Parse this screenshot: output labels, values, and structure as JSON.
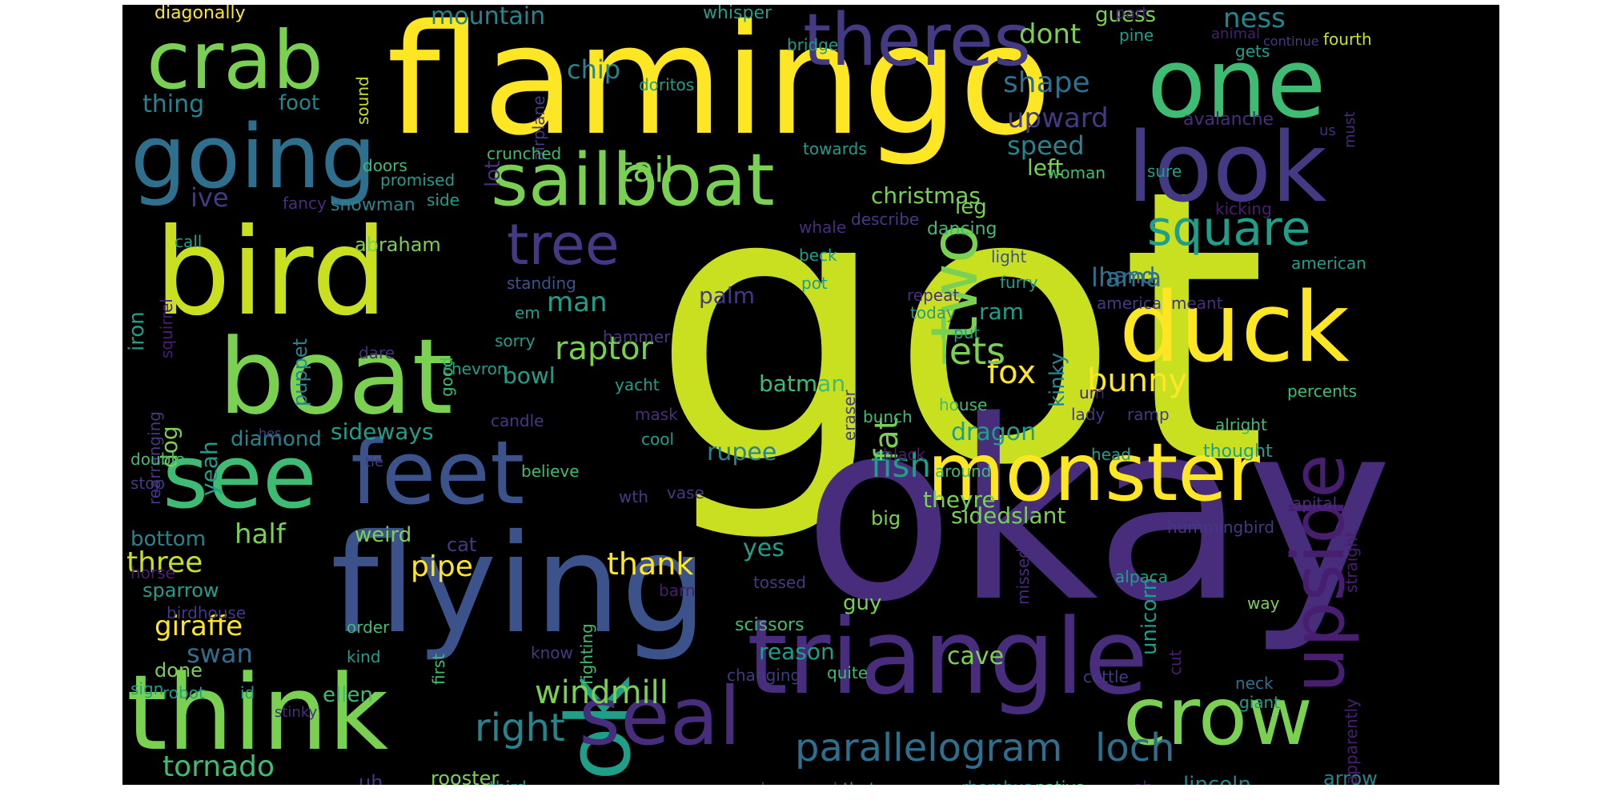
{
  "words": [
    "got",
    "okay",
    "flamingo",
    "flying",
    "bird",
    "triangle",
    "boat",
    "think",
    "see",
    "feet",
    "ok",
    "duck",
    "one",
    "look",
    "monster",
    "upside",
    "crab",
    "going",
    "sailboat",
    "seal",
    "crow",
    "two",
    "theres",
    "tree",
    "square",
    "parallelogram",
    "right",
    "loch",
    "tornado",
    "windmill",
    "fox",
    "man",
    "tail",
    "raptor",
    "bunny",
    "fish",
    "fat",
    "lets",
    "llama",
    "kinky",
    "giraffe",
    "three",
    "half",
    "swan",
    "pipe",
    "thank",
    "sideways",
    "dragon",
    "sidedslant",
    "diamond",
    "dog",
    "yeah",
    "bowl",
    "batman",
    "christmas",
    "cave",
    "mountain",
    "ness",
    "dont",
    "shape",
    "upward",
    "speed",
    "chip",
    "guess",
    "thing",
    "foot",
    "ive",
    "snowman",
    "abraham",
    "puppet",
    "hand",
    "ram",
    "rupee",
    "yes",
    "weird",
    "bottom",
    "sparrow",
    "done",
    "reason",
    "guy",
    "scissors",
    "ellen",
    "rooster",
    "lincoln",
    "arrow",
    "avalanche",
    "unicorn",
    "leg",
    "left",
    "big",
    "theyre",
    "palm",
    "iron",
    "lot",
    "whisper",
    "bridge",
    "doritos",
    "diagonally",
    "part",
    "pine",
    "animal",
    "gets",
    "fourth",
    "continue",
    "must",
    "us",
    "sound",
    "airplane",
    "towards",
    "crunched",
    "doors",
    "promised",
    "fancy",
    "side",
    "woman",
    "sure",
    "kicking",
    "whale",
    "describe",
    "dancing",
    "call",
    "squirrel",
    "standing",
    "light",
    "american",
    "beck",
    "pot",
    "furry",
    "repeat",
    "today",
    "america",
    "meant",
    "em",
    "sorry",
    "hammer",
    "put",
    "good",
    "dare",
    "chevron",
    "eraser",
    "yacht",
    "um",
    "percents",
    "mask",
    "house",
    "candle",
    "cool",
    "bunch",
    "lady",
    "ramp",
    "alright",
    "rearranging",
    "hes",
    "black",
    "head",
    "thought",
    "double",
    "tie",
    "believe",
    "around",
    "stop",
    "wth",
    "vase",
    "capital",
    "cat",
    "missed",
    "hummingbird",
    "straight",
    "horse",
    "birdhouse",
    "tossed",
    "barn",
    "alpaca",
    "order",
    "first",
    "fighting",
    "cut",
    "way",
    "kind",
    "know",
    "changing",
    "quite",
    "cettle",
    "sign",
    "robot",
    "id",
    "stinky",
    "neck",
    "giant",
    "apparently",
    "uh",
    "third",
    "definitely",
    "downward",
    "thats",
    "rhombus",
    "native",
    "oh"
  ],
  "colors": {
    "background": "#000000",
    "yellow": "#fde725",
    "lime": "#c8e020",
    "green": "#7ad151",
    "mint": "#3fbc73",
    "teal": "#1f9e89",
    "sea": "#25858e",
    "steel": "#2e6f8e",
    "blue": "#3b528b",
    "indigo": "#443983",
    "violet": "#472d7b",
    "purple": "#481f70",
    "deep": "#440154"
  }
}
